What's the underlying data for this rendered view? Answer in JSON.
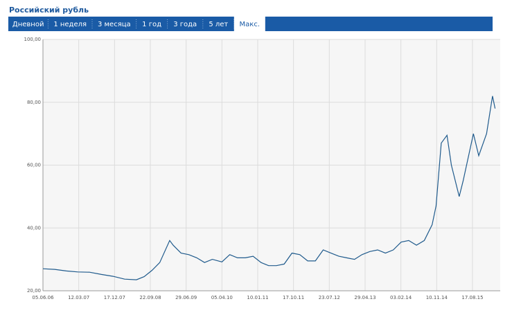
{
  "header": {
    "title": "Российский рубль"
  },
  "tabs": [
    "Дневной",
    "1 неделя",
    "3 месяца",
    "1 год",
    "3 года",
    "5 лет",
    "Макс."
  ],
  "active_tab": "Макс.",
  "chart_data": {
    "type": "line",
    "color": "#1f5a8c",
    "grid": true,
    "x": [
      "05.06.06",
      "05.09.06",
      "05.12.06",
      "05.03.07",
      "05.06.07",
      "05.09.07",
      "05.12.07",
      "05.03.08",
      "05.06.08",
      "05.08.08",
      "05.10.08",
      "05.12.08",
      "20.02.09",
      "20.03.09",
      "20.05.09",
      "20.07.09",
      "20.09.09",
      "20.11.09",
      "20.01.10",
      "05.04.10",
      "05.06.10",
      "05.08.10",
      "05.10.10",
      "05.12.10",
      "05.02.11",
      "05.04.11",
      "05.06.11",
      "05.08.11",
      "05.10.11",
      "05.12.11",
      "05.02.12",
      "05.04.12",
      "05.06.12",
      "05.08.12",
      "05.10.12",
      "05.12.12",
      "05.02.13",
      "05.04.13",
      "05.06.13",
      "05.08.13",
      "05.10.13",
      "05.12.13",
      "05.02.14",
      "05.04.14",
      "05.06.14",
      "05.08.14",
      "05.10.14",
      "05.11.14",
      "16.12.14",
      "30.01.15",
      "05.03.15",
      "05.05.15",
      "05.06.15",
      "24.08.15",
      "05.10.15",
      "05.12.15",
      "21.01.16",
      "10.02.16"
    ],
    "values": [
      27.0,
      26.8,
      26.3,
      26.0,
      25.9,
      25.2,
      24.6,
      23.7,
      23.5,
      24.5,
      26.5,
      29.0,
      36.0,
      34.5,
      32.0,
      31.5,
      30.5,
      29.0,
      30.0,
      29.2,
      31.5,
      30.5,
      30.5,
      31.0,
      29.0,
      28.0,
      28.0,
      28.5,
      32.0,
      31.5,
      29.5,
      29.5,
      33.0,
      32.0,
      31.0,
      30.5,
      30.0,
      31.5,
      32.5,
      33.0,
      32.0,
      33.0,
      35.5,
      36.0,
      34.5,
      36.0,
      41.0,
      47.0,
      67.0,
      69.5,
      60.0,
      50.0,
      55.0,
      70.0,
      63.0,
      70.0,
      82.0,
      78.0
    ],
    "xlim": [
      "05.06.06",
      "21.03.16"
    ],
    "xticks": [
      "05.06.06",
      "12.03.07",
      "17.12.07",
      "22.09.08",
      "29.06.09",
      "05.04.10",
      "10.01.11",
      "17.10.11",
      "23.07.12",
      "29.04.13",
      "03.02.14",
      "10.11.14",
      "17.08.15"
    ],
    "ylim": [
      20,
      100
    ],
    "yticks": [
      {
        "value": 20,
        "label": "20,00"
      },
      {
        "value": 40,
        "label": "40,00"
      },
      {
        "value": 60,
        "label": "60,00"
      },
      {
        "value": 80,
        "label": "80,00"
      },
      {
        "value": 100,
        "label": "100,00"
      }
    ]
  }
}
